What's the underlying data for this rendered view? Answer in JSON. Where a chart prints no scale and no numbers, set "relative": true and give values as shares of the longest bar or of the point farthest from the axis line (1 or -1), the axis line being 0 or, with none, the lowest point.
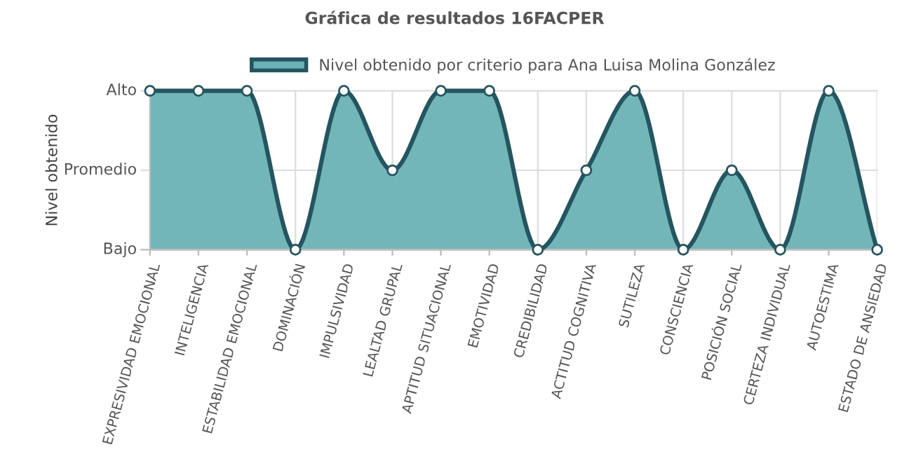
{
  "chart_data": {
    "type": "area",
    "title": "Gráfica de resultados 16FACPER",
    "ylabel": "Nivel obtenido",
    "categories": [
      "EXPRESIVIDAD EMOCIONAL",
      "INTELIGENCIA",
      "ESTABILIDAD EMOCIONAL",
      "DOMINACIÓN",
      "IMPULSIVIDAD",
      "LEALTAD GRUPAL",
      "APTITUD SITUACIONAL",
      "EMOTIVIDAD",
      "CREDIBILIDAD",
      "ACTITUD COGNITIVA",
      "SUTILEZA",
      "CONSCIENCIA",
      "POSICIÓN SOCIAL",
      "CERTEZA INDIVIDUAL",
      "AUTOESTIMA",
      "ESTADO DE ANSIEDAD"
    ],
    "series": [
      {
        "name": "Nivel obtenido por criterio para Ana Luisa Molina González",
        "color": "#6cb2b4",
        "values": [
          1,
          1,
          1,
          0,
          1,
          0.5,
          1,
          1,
          0,
          0.5,
          1,
          0,
          0.5,
          0,
          1,
          0
        ]
      }
    ],
    "relative": true,
    "ref_lines": [
      {
        "axis": "y",
        "value": 0,
        "label": "Bajo",
        "color": "#bbbbbb"
      },
      {
        "axis": "y",
        "value": 0.5,
        "label": "Promedio",
        "color": "#dddddd"
      },
      {
        "axis": "y",
        "value": 1,
        "label": "Alto",
        "color": "#dddddd"
      }
    ],
    "grid": "x",
    "legend": "top",
    "marker": "circle",
    "line_style": "solid"
  }
}
